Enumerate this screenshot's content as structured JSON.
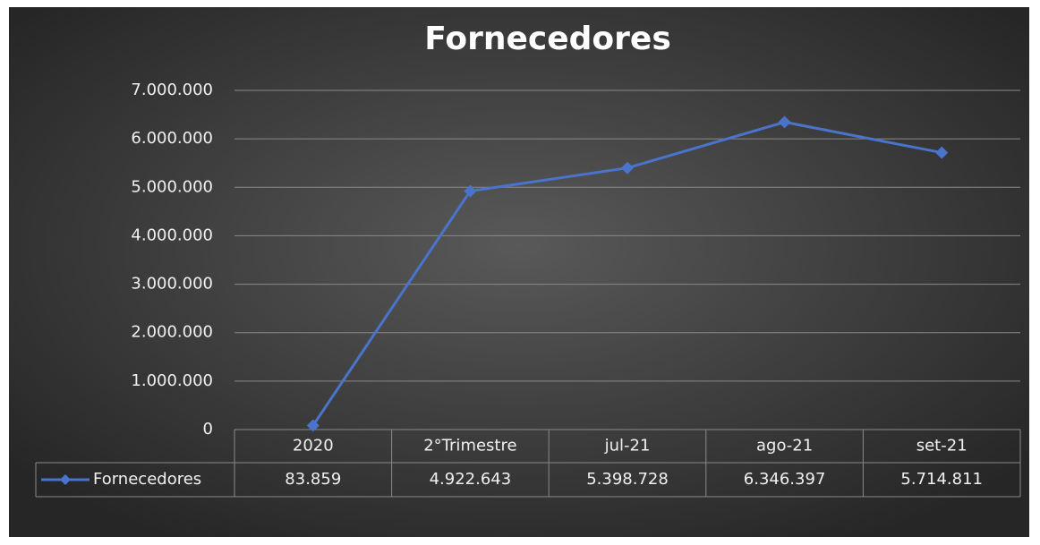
{
  "chart_data": {
    "type": "line",
    "title": "Fornecedores",
    "categories": [
      "2020",
      "2°Trimestre",
      "jul-21",
      "ago-21",
      "set-21"
    ],
    "series": [
      {
        "name": "Fornecedores",
        "color": "#4a74cc",
        "values": [
          83859,
          4922643,
          5398728,
          6346397,
          5714811
        ],
        "value_labels": [
          "83.859",
          "4.922.643",
          "5.398.728",
          "6.346.397",
          "5.714.811"
        ]
      }
    ],
    "ylim": [
      0,
      7000000
    ],
    "yticks": [
      0,
      {
        "value": 1000000,
        "label": "1.000.000"
      },
      {
        "value": 2000000,
        "label": "2.000.000"
      },
      {
        "value": 3000000,
        "label": "3.000.000"
      },
      {
        "value": 4000000,
        "label": "4.000.000"
      },
      {
        "value": 5000000,
        "label": "5.000.000"
      },
      {
        "value": 6000000,
        "label": "6.000.000"
      },
      {
        "value": 7000000,
        "label": "7.000.000"
      }
    ],
    "grid": true
  }
}
